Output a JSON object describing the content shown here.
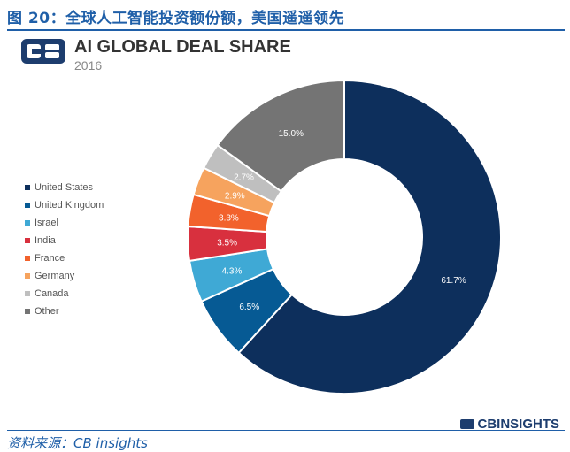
{
  "figure_title": "图 20：全球人工智能投资额份额，美国遥遥领先",
  "source": "资料来源：CB insights",
  "brand": "CBINSIGHTS",
  "chart_data": {
    "type": "pie",
    "title": "AI GLOBAL DEAL SHARE",
    "subtitle": "2016",
    "donut": true,
    "legend_position": "left",
    "slices": [
      {
        "label": "United States",
        "value": 61.7,
        "value_label": "61.7%",
        "color": "#0d2f5c"
      },
      {
        "label": "United Kingdom",
        "value": 6.5,
        "value_label": "6.5%",
        "color": "#065a94"
      },
      {
        "label": "Israel",
        "value": 4.3,
        "value_label": "4.3%",
        "color": "#3fa9d5"
      },
      {
        "label": "India",
        "value": 3.5,
        "value_label": "3.5%",
        "color": "#d8303e"
      },
      {
        "label": "France",
        "value": 3.3,
        "value_label": "3.3%",
        "color": "#f2622c"
      },
      {
        "label": "Germany",
        "value": 2.9,
        "value_label": "2.9%",
        "color": "#f6a35e"
      },
      {
        "label": "Canada",
        "value": 2.7,
        "value_label": "2.7%",
        "color": "#bfbfbf"
      },
      {
        "label": "Other",
        "value": 15.0,
        "value_label": "15.0%",
        "color": "#747474"
      }
    ]
  }
}
